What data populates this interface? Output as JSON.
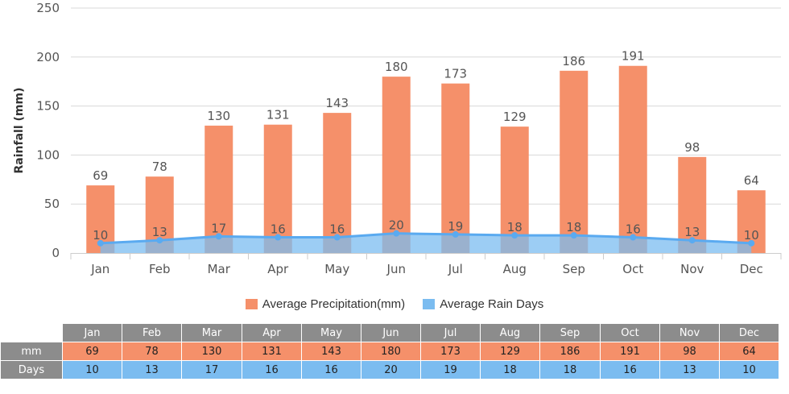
{
  "chart_data": {
    "type": "bar",
    "categories": [
      "Jan",
      "Feb",
      "Mar",
      "Apr",
      "May",
      "Jun",
      "Jul",
      "Aug",
      "Sep",
      "Oct",
      "Nov",
      "Dec"
    ],
    "series": [
      {
        "name": "Average Precipitation(mm)",
        "type": "bar",
        "values": [
          69,
          78,
          130,
          131,
          143,
          180,
          173,
          129,
          186,
          191,
          98,
          64
        ],
        "color": "#f5906a"
      },
      {
        "name": "Average Rain Days",
        "type": "area",
        "values": [
          10,
          13,
          17,
          16,
          16,
          20,
          19,
          18,
          18,
          16,
          13,
          10
        ],
        "color": "#7bbcf0"
      }
    ],
    "ylabel": "Rainfall (mm)",
    "ylim": [
      0,
      250
    ],
    "yticks": [
      0,
      50,
      100,
      150,
      200,
      250
    ],
    "grid": true,
    "legend_position": "bottom"
  },
  "table": {
    "row_labels": {
      "mm": "mm",
      "days": "Days"
    }
  }
}
